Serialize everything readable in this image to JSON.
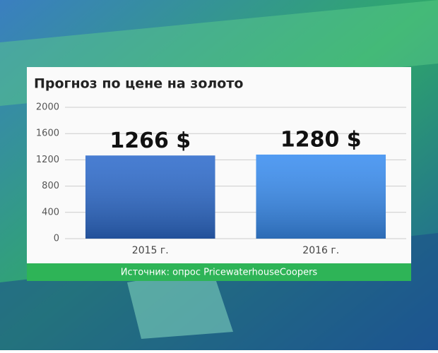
{
  "chart_data": {
    "type": "bar",
    "title": "Прогноз по цене на золото",
    "categories": [
      "2015 г.",
      "2016 г."
    ],
    "values": [
      1266,
      1280
    ],
    "value_labels": [
      "1266 $",
      "1280 $"
    ],
    "colors": [
      "#2f6ccc",
      "#3b8ef0"
    ],
    "ylim": [
      0,
      2000
    ],
    "yticks": [
      0,
      400,
      800,
      1200,
      1600,
      2000
    ],
    "grid": true,
    "source": "Источник: опрос PricewaterhouseCoopers"
  }
}
